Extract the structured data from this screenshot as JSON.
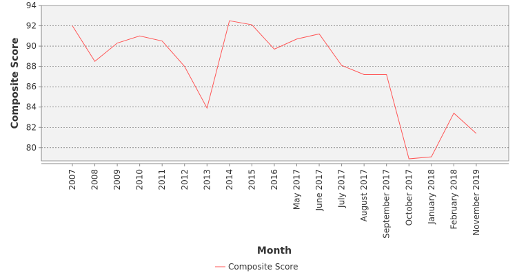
{
  "chart_data": {
    "type": "line",
    "xlabel": "Month",
    "ylabel": "Composite Score",
    "ylim": [
      78.7,
      94
    ],
    "yticks": [
      80,
      82,
      84,
      86,
      88,
      90,
      92,
      94
    ],
    "grid": true,
    "legend_position": "bottom-center",
    "categories": [
      "2007",
      "2008",
      "2009",
      "2010",
      "2011",
      "2012",
      "2013",
      "2014",
      "2015",
      "2016",
      "May 2017",
      "June 2017",
      "July 2017",
      "August 2017",
      "September 2017",
      "October 2017",
      "January 2018",
      "February 2018",
      "November 2019"
    ],
    "series": [
      {
        "name": "Composite Score",
        "color": "#ff5555",
        "values": [
          92.0,
          88.5,
          90.3,
          91.0,
          90.5,
          88.0,
          83.9,
          92.5,
          92.1,
          89.7,
          90.7,
          91.2,
          88.1,
          87.2,
          87.2,
          78.9,
          79.1,
          83.4,
          81.4
        ]
      }
    ]
  },
  "colors": {
    "plot_background": "#f2f2f2",
    "gridline": "#555555",
    "axis": "#888888"
  }
}
